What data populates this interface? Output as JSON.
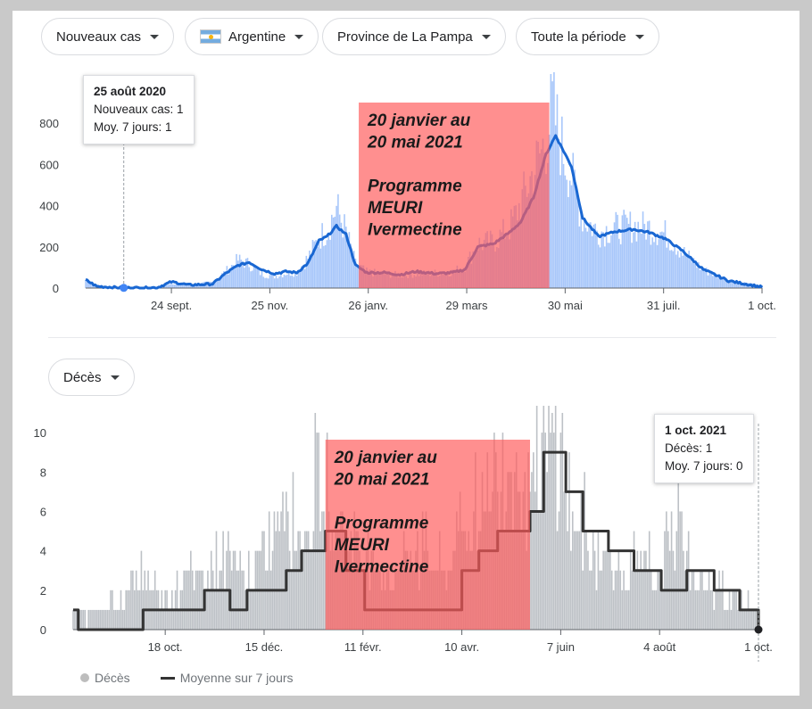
{
  "filters": {
    "metric": "Nouveaux cas",
    "country": "Argentine",
    "region": "Province de La Pampa",
    "period": "Toute la période",
    "metric2": "Décès"
  },
  "colors": {
    "cases_bar": "#a8c7fa",
    "cases_line": "#1967d2",
    "deaths_bar": "#bdc1c6",
    "deaths_line": "#333333",
    "highlight": "#ff5a5a"
  },
  "tooltip_cases": {
    "date": "25 août 2020",
    "line1": "Nouveaux cas: 1",
    "line2": "Moy. 7 jours: 1"
  },
  "tooltip_deaths": {
    "date": "1 oct. 2021",
    "line1": "Décès: 1",
    "line2": "Moy. 7 jours: 0"
  },
  "annotation": {
    "line1": "20 janvier au",
    "line2": "20 mai 2021",
    "line3": "Programme",
    "line4": "MEURI",
    "line5": "Ivermectine"
  },
  "legend": {
    "deaths": "Décès",
    "avg": "Moyenne sur 7 jours"
  },
  "chart_data": [
    {
      "type": "bar",
      "title": "Nouveaux cas",
      "start_date": "2020-08-01",
      "end_date": "2021-10-01",
      "ylim": [
        0,
        900
      ],
      "yticks": [
        0,
        200,
        400,
        600,
        800
      ],
      "xticks": [
        {
          "label": "24 sept.",
          "date": "2020-09-24"
        },
        {
          "label": "25 nov.",
          "date": "2020-11-25"
        },
        {
          "label": "26 janv.",
          "date": "2021-01-26"
        },
        {
          "label": "29 mars",
          "date": "2021-03-29"
        },
        {
          "label": "30 mai",
          "date": "2021-05-30"
        },
        {
          "label": "31 juil.",
          "date": "2021-07-31"
        },
        {
          "label": "1 oct.",
          "date": "2021-10-01"
        }
      ],
      "highlight_range": [
        "2021-01-20",
        "2021-05-20"
      ],
      "tooltip_point": {
        "date": "2020-08-25",
        "value": 1
      },
      "series": [
        {
          "name": "Nouveaux cas",
          "kind": "bars",
          "points": [
            [
              "2020-08-01",
              40
            ],
            [
              "2020-08-10",
              5
            ],
            [
              "2020-08-25",
              1
            ],
            [
              "2020-09-15",
              3
            ],
            [
              "2020-09-24",
              25
            ],
            [
              "2020-10-05",
              15
            ],
            [
              "2020-10-20",
              30
            ],
            [
              "2020-10-28",
              80
            ],
            [
              "2020-11-05",
              140
            ],
            [
              "2020-11-12",
              120
            ],
            [
              "2020-11-20",
              70
            ],
            [
              "2020-11-28",
              60
            ],
            [
              "2020-12-05",
              75
            ],
            [
              "2020-12-12",
              80
            ],
            [
              "2020-12-19",
              150
            ],
            [
              "2020-12-26",
              250
            ],
            [
              "2020-12-31",
              290
            ],
            [
              "2021-01-06",
              400
            ],
            [
              "2021-01-12",
              280
            ],
            [
              "2021-01-18",
              120
            ],
            [
              "2021-01-25",
              80
            ],
            [
              "2021-02-05",
              70
            ],
            [
              "2021-02-15",
              65
            ],
            [
              "2021-02-25",
              70
            ],
            [
              "2021-03-10",
              75
            ],
            [
              "2021-03-20",
              80
            ],
            [
              "2021-03-28",
              110
            ],
            [
              "2021-04-05",
              220
            ],
            [
              "2021-04-15",
              230
            ],
            [
              "2021-04-25",
              300
            ],
            [
              "2021-05-02",
              420
            ],
            [
              "2021-05-10",
              580
            ],
            [
              "2021-05-18",
              740
            ],
            [
              "2021-05-22",
              900
            ],
            [
              "2021-05-28",
              700
            ],
            [
              "2021-06-03",
              560
            ],
            [
              "2021-06-10",
              350
            ],
            [
              "2021-06-20",
              280
            ],
            [
              "2021-07-01",
              300
            ],
            [
              "2021-07-12",
              310
            ],
            [
              "2021-07-22",
              300
            ],
            [
              "2021-08-01",
              270
            ],
            [
              "2021-08-12",
              180
            ],
            [
              "2021-08-25",
              90
            ],
            [
              "2021-09-10",
              40
            ],
            [
              "2021-10-01",
              10
            ]
          ]
        },
        {
          "name": "Moy. 7 jours",
          "kind": "line",
          "points": [
            [
              "2020-08-01",
              40
            ],
            [
              "2020-08-08",
              8
            ],
            [
              "2020-08-25",
              1
            ],
            [
              "2020-09-15",
              2
            ],
            [
              "2020-09-24",
              30
            ],
            [
              "2020-10-05",
              15
            ],
            [
              "2020-10-20",
              20
            ],
            [
              "2020-10-28",
              70
            ],
            [
              "2020-11-05",
              110
            ],
            [
              "2020-11-12",
              125
            ],
            [
              "2020-11-20",
              90
            ],
            [
              "2020-11-28",
              70
            ],
            [
              "2020-12-05",
              80
            ],
            [
              "2020-12-12",
              75
            ],
            [
              "2020-12-19",
              120
            ],
            [
              "2020-12-26",
              230
            ],
            [
              "2020-12-31",
              250
            ],
            [
              "2021-01-06",
              300
            ],
            [
              "2021-01-12",
              260
            ],
            [
              "2021-01-18",
              110
            ],
            [
              "2021-01-25",
              75
            ],
            [
              "2021-02-05",
              75
            ],
            [
              "2021-02-15",
              65
            ],
            [
              "2021-02-25",
              80
            ],
            [
              "2021-03-10",
              70
            ],
            [
              "2021-03-20",
              75
            ],
            [
              "2021-03-28",
              90
            ],
            [
              "2021-04-05",
              200
            ],
            [
              "2021-04-15",
              215
            ],
            [
              "2021-04-25",
              270
            ],
            [
              "2021-05-02",
              320
            ],
            [
              "2021-05-10",
              440
            ],
            [
              "2021-05-18",
              650
            ],
            [
              "2021-05-24",
              740
            ],
            [
              "2021-06-03",
              590
            ],
            [
              "2021-06-10",
              340
            ],
            [
              "2021-06-20",
              250
            ],
            [
              "2021-07-01",
              275
            ],
            [
              "2021-07-12",
              285
            ],
            [
              "2021-07-22",
              270
            ],
            [
              "2021-08-01",
              240
            ],
            [
              "2021-08-12",
              180
            ],
            [
              "2021-08-25",
              90
            ],
            [
              "2021-09-10",
              35
            ],
            [
              "2021-10-01",
              5
            ]
          ]
        }
      ]
    },
    {
      "type": "bar",
      "title": "Décès",
      "start_date": "2020-08-25",
      "end_date": "2021-10-01",
      "ylim": [
        0,
        11
      ],
      "yticks": [
        0,
        2,
        4,
        6,
        8,
        10
      ],
      "xticks": [
        {
          "label": "18 oct.",
          "date": "2020-10-18"
        },
        {
          "label": "15 déc.",
          "date": "2020-12-15"
        },
        {
          "label": "11 févr.",
          "date": "2021-02-11"
        },
        {
          "label": "10 avr.",
          "date": "2021-04-10"
        },
        {
          "label": "7 juin",
          "date": "2021-06-07"
        },
        {
          "label": "4 août",
          "date": "2021-08-04"
        },
        {
          "label": "1 oct.",
          "date": "2021-10-01"
        }
      ],
      "highlight_range": [
        "2021-01-20",
        "2021-05-20"
      ],
      "tooltip_point": {
        "date": "2021-10-01",
        "value": 0
      },
      "series": [
        {
          "name": "Décès",
          "kind": "bars",
          "points": [
            [
              "2020-08-25",
              1
            ],
            [
              "2020-09-10",
              1
            ],
            [
              "2020-09-25",
              2
            ],
            [
              "2020-10-05",
              3
            ],
            [
              "2020-10-18",
              2
            ],
            [
              "2020-10-28",
              3
            ],
            [
              "2020-11-10",
              3
            ],
            [
              "2020-11-25",
              4
            ],
            [
              "2020-12-05",
              3
            ],
            [
              "2020-12-15",
              4
            ],
            [
              "2020-12-28",
              8
            ],
            [
              "2021-01-06",
              5
            ],
            [
              "2021-01-15",
              8
            ],
            [
              "2021-01-25",
              7
            ],
            [
              "2021-02-05",
              5
            ],
            [
              "2021-02-15",
              4
            ],
            [
              "2021-02-25",
              3
            ],
            [
              "2021-03-10",
              4
            ],
            [
              "2021-03-20",
              5
            ],
            [
              "2021-03-30",
              3
            ],
            [
              "2021-04-10",
              6
            ],
            [
              "2021-04-20",
              7
            ],
            [
              "2021-05-01",
              9
            ],
            [
              "2021-05-10",
              10
            ],
            [
              "2021-05-20",
              8
            ],
            [
              "2021-06-01",
              11
            ],
            [
              "2021-06-07",
              10
            ],
            [
              "2021-06-15",
              6
            ],
            [
              "2021-06-25",
              5
            ],
            [
              "2021-07-05",
              4
            ],
            [
              "2021-07-15",
              3
            ],
            [
              "2021-07-25",
              4
            ],
            [
              "2021-08-05",
              3
            ],
            [
              "2021-08-15",
              7
            ],
            [
              "2021-08-25",
              3
            ],
            [
              "2021-09-05",
              2
            ],
            [
              "2021-09-20",
              2
            ],
            [
              "2021-10-01",
              1
            ]
          ]
        },
        {
          "name": "Moyenne sur 7 jours",
          "kind": "step",
          "points": [
            [
              "2020-08-25",
              1
            ],
            [
              "2020-08-28",
              0
            ],
            [
              "2020-10-05",
              1
            ],
            [
              "2020-11-10",
              2
            ],
            [
              "2020-11-25",
              1
            ],
            [
              "2020-12-05",
              2
            ],
            [
              "2020-12-28",
              3
            ],
            [
              "2021-01-06",
              4
            ],
            [
              "2021-01-20",
              5
            ],
            [
              "2021-02-01",
              3
            ],
            [
              "2021-02-12",
              1
            ],
            [
              "2021-03-10",
              1
            ],
            [
              "2021-04-01",
              1
            ],
            [
              "2021-04-10",
              3
            ],
            [
              "2021-04-20",
              4
            ],
            [
              "2021-05-01",
              5
            ],
            [
              "2021-05-20",
              6
            ],
            [
              "2021-05-28",
              9
            ],
            [
              "2021-06-10",
              7
            ],
            [
              "2021-06-20",
              5
            ],
            [
              "2021-07-05",
              4
            ],
            [
              "2021-07-20",
              3
            ],
            [
              "2021-08-05",
              2
            ],
            [
              "2021-08-20",
              3
            ],
            [
              "2021-09-05",
              2
            ],
            [
              "2021-09-20",
              1
            ],
            [
              "2021-10-01",
              0
            ]
          ]
        }
      ]
    }
  ]
}
